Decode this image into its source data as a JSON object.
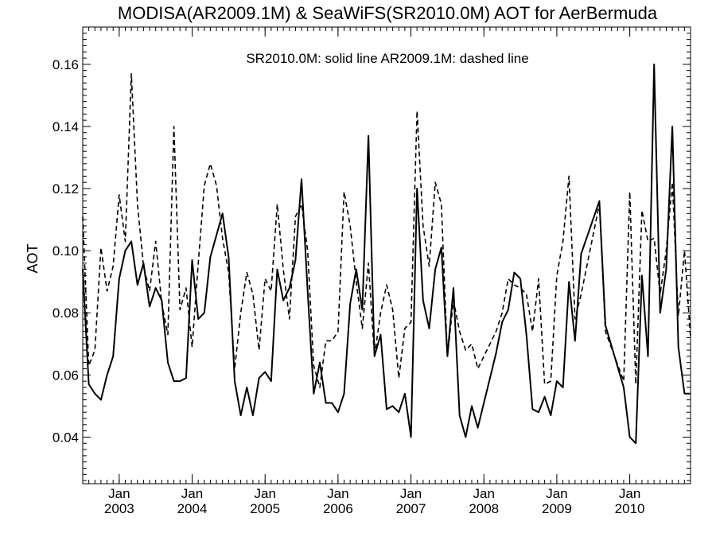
{
  "chart_data": {
    "type": "line",
    "title": "MODISA(AR2009.1M) & SeaWiFS(SR2010.0M)  AOT for AerBermuda",
    "annotation": "SR2010.0M: solid line   AR2009.1M: dashed line",
    "ylabel": "AOT",
    "xlabel": "",
    "ylim": [
      0.025,
      0.172
    ],
    "xlim": [
      "2002-07",
      "2010-11"
    ],
    "yticks": [
      {
        "value": 0.04,
        "label": "0.04"
      },
      {
        "value": 0.06,
        "label": "0.06"
      },
      {
        "value": 0.08,
        "label": "0.08"
      },
      {
        "value": 0.1,
        "label": "0.10"
      },
      {
        "value": 0.12,
        "label": "0.12"
      },
      {
        "value": 0.14,
        "label": "0.14"
      },
      {
        "value": 0.16,
        "label": "0.16"
      }
    ],
    "xticks": [
      {
        "date": "2003-01",
        "month": "Jan",
        "year": "2003"
      },
      {
        "date": "2004-01",
        "month": "Jan",
        "year": "2004"
      },
      {
        "date": "2005-01",
        "month": "Jan",
        "year": "2005"
      },
      {
        "date": "2006-01",
        "month": "Jan",
        "year": "2006"
      },
      {
        "date": "2007-01",
        "month": "Jan",
        "year": "2007"
      },
      {
        "date": "2008-01",
        "month": "Jan",
        "year": "2008"
      },
      {
        "date": "2009-01",
        "month": "Jan",
        "year": "2009"
      },
      {
        "date": "2010-01",
        "month": "Jan",
        "year": "2010"
      }
    ],
    "grid": false,
    "series": [
      {
        "style": "solid",
        "points": [
          [
            "2002-07",
            0.094
          ],
          [
            "2002-08",
            0.057
          ],
          [
            "2002-09",
            0.054
          ],
          [
            "2002-10",
            0.052
          ],
          [
            "2002-11",
            0.06
          ],
          [
            "2002-12",
            0.066
          ],
          [
            "2003-01",
            0.091
          ],
          [
            "2003-02",
            0.1
          ],
          [
            "2003-03",
            0.103
          ],
          [
            "2003-04",
            0.089
          ],
          [
            "2003-05",
            0.096
          ],
          [
            "2003-06",
            0.082
          ],
          [
            "2003-07",
            0.088
          ],
          [
            "2003-08",
            0.084
          ],
          [
            "2003-09",
            0.064
          ],
          [
            "2003-10",
            0.058
          ],
          [
            "2003-11",
            0.058
          ],
          [
            "2003-12",
            0.059
          ],
          [
            "2004-01",
            0.097
          ],
          [
            "2004-02",
            0.078
          ],
          [
            "2004-03",
            0.08
          ],
          [
            "2004-04",
            0.098
          ],
          [
            "2004-05",
            0.105
          ],
          [
            "2004-06",
            0.112
          ],
          [
            "2004-07",
            0.098
          ],
          [
            "2004-08",
            0.058
          ],
          [
            "2004-09",
            0.047
          ],
          [
            "2004-10",
            0.056
          ],
          [
            "2004-11",
            0.047
          ],
          [
            "2004-12",
            0.059
          ],
          [
            "2005-01",
            0.061
          ],
          [
            "2005-02",
            0.058
          ],
          [
            "2005-03",
            0.094
          ],
          [
            "2005-04",
            0.084
          ],
          [
            "2005-05",
            0.088
          ],
          [
            "2005-06",
            0.097
          ],
          [
            "2005-07",
            0.123
          ],
          [
            "2005-08",
            0.087
          ],
          [
            "2005-09",
            0.054
          ],
          [
            "2005-10",
            0.064
          ],
          [
            "2005-11",
            0.051
          ],
          [
            "2005-12",
            0.051
          ],
          [
            "2006-01",
            0.048
          ],
          [
            "2006-02",
            0.054
          ],
          [
            "2006-03",
            0.083
          ],
          [
            "2006-04",
            0.094
          ],
          [
            "2006-05",
            0.081
          ],
          [
            "2006-06",
            0.137
          ],
          [
            "2006-07",
            0.066
          ],
          [
            "2006-08",
            0.073
          ],
          [
            "2006-09",
            0.049
          ],
          [
            "2006-10",
            0.05
          ],
          [
            "2006-11",
            0.048
          ],
          [
            "2006-12",
            0.054
          ],
          [
            "2007-01",
            0.04
          ],
          [
            "2007-02",
            0.12
          ],
          [
            "2007-03",
            0.084
          ],
          [
            "2007-04",
            0.075
          ],
          [
            "2007-05",
            0.094
          ],
          [
            "2007-06",
            0.101
          ],
          [
            "2007-07",
            0.066
          ],
          [
            "2007-08",
            0.088
          ],
          [
            "2007-09",
            0.047
          ],
          [
            "2007-10",
            0.04
          ],
          [
            "2007-11",
            0.05
          ],
          [
            "2007-12",
            0.043
          ],
          [
            "2008-01",
            0.051
          ],
          [
            "2008-02",
            0.059
          ],
          [
            "2008-03",
            0.067
          ],
          [
            "2008-04",
            0.077
          ],
          [
            "2008-05",
            0.081
          ],
          [
            "2008-06",
            0.093
          ],
          [
            "2008-07",
            0.091
          ],
          [
            "2008-08",
            0.073
          ],
          [
            "2008-09",
            0.049
          ],
          [
            "2008-10",
            0.048
          ],
          [
            "2008-11",
            0.053
          ],
          [
            "2008-12",
            0.047
          ],
          [
            "2009-01",
            0.058
          ],
          [
            "2009-02",
            0.056
          ],
          [
            "2009-03",
            0.09
          ],
          [
            "2009-04",
            0.071
          ],
          [
            "2009-05",
            0.099
          ],
          [
            "2009-08",
            0.116
          ],
          [
            "2009-09",
            0.076
          ],
          [
            "2009-12",
            0.056
          ],
          [
            "2010-01",
            0.04
          ],
          [
            "2010-02",
            0.038
          ],
          [
            "2010-03",
            0.092
          ],
          [
            "2010-04",
            0.066
          ],
          [
            "2010-05",
            0.16
          ],
          [
            "2010-06",
            0.08
          ],
          [
            "2010-07",
            0.094
          ],
          [
            "2010-08",
            0.14
          ],
          [
            "2010-09",
            0.069
          ],
          [
            "2010-10",
            0.054
          ],
          [
            "2010-11",
            0.054
          ]
        ]
      },
      {
        "style": "dashed",
        "points": [
          [
            "2002-07",
            0.111
          ],
          [
            "2002-08",
            0.063
          ],
          [
            "2002-09",
            0.068
          ],
          [
            "2002-10",
            0.101
          ],
          [
            "2002-11",
            0.087
          ],
          [
            "2002-12",
            0.095
          ],
          [
            "2003-01",
            0.118
          ],
          [
            "2003-02",
            0.103
          ],
          [
            "2003-03",
            0.157
          ],
          [
            "2003-04",
            0.115
          ],
          [
            "2003-05",
            0.095
          ],
          [
            "2003-06",
            0.087
          ],
          [
            "2003-07",
            0.103
          ],
          [
            "2003-08",
            0.083
          ],
          [
            "2003-09",
            0.073
          ],
          [
            "2003-10",
            0.14
          ],
          [
            "2003-11",
            0.081
          ],
          [
            "2003-12",
            0.088
          ],
          [
            "2004-01",
            0.069
          ],
          [
            "2004-02",
            0.096
          ],
          [
            "2004-03",
            0.121
          ],
          [
            "2004-04",
            0.128
          ],
          [
            "2004-05",
            0.121
          ],
          [
            "2004-06",
            0.104
          ],
          [
            "2004-07",
            0.093
          ],
          [
            "2004-08",
            0.062
          ],
          [
            "2004-09",
            0.08
          ],
          [
            "2004-10",
            0.093
          ],
          [
            "2004-11",
            0.086
          ],
          [
            "2004-12",
            0.068
          ],
          [
            "2005-01",
            0.091
          ],
          [
            "2005-02",
            0.087
          ],
          [
            "2005-03",
            0.115
          ],
          [
            "2005-04",
            0.094
          ],
          [
            "2005-05",
            0.078
          ],
          [
            "2005-06",
            0.111
          ],
          [
            "2005-07",
            0.115
          ],
          [
            "2005-08",
            0.1
          ],
          [
            "2005-09",
            0.063
          ],
          [
            "2005-10",
            0.056
          ],
          [
            "2005-11",
            0.071
          ],
          [
            "2005-12",
            0.071
          ],
          [
            "2006-01",
            0.074
          ],
          [
            "2006-02",
            0.119
          ],
          [
            "2006-03",
            0.108
          ],
          [
            "2006-04",
            0.09
          ],
          [
            "2006-05",
            0.075
          ],
          [
            "2006-06",
            0.096
          ],
          [
            "2006-07",
            0.066
          ],
          [
            "2006-08",
            0.08
          ],
          [
            "2006-09",
            0.089
          ],
          [
            "2006-10",
            0.081
          ],
          [
            "2006-11",
            0.059
          ],
          [
            "2006-12",
            0.075
          ],
          [
            "2007-01",
            0.077
          ],
          [
            "2007-02",
            0.145
          ],
          [
            "2007-03",
            0.108
          ],
          [
            "2007-04",
            0.095
          ],
          [
            "2007-05",
            0.122
          ],
          [
            "2007-06",
            0.115
          ],
          [
            "2007-07",
            0.066
          ],
          [
            "2007-08",
            0.084
          ],
          [
            "2007-09",
            0.074
          ],
          [
            "2007-10",
            0.068
          ],
          [
            "2007-11",
            0.07
          ],
          [
            "2007-12",
            0.062
          ],
          [
            "2008-01",
            0.066
          ],
          [
            "2008-02",
            0.07
          ],
          [
            "2008-03",
            0.074
          ],
          [
            "2008-04",
            0.08
          ],
          [
            "2008-05",
            0.091
          ],
          [
            "2008-06",
            0.089
          ],
          [
            "2008-07",
            0.088
          ],
          [
            "2008-08",
            0.086
          ],
          [
            "2008-09",
            0.074
          ],
          [
            "2008-10",
            0.091
          ],
          [
            "2008-11",
            0.057
          ],
          [
            "2008-12",
            0.058
          ],
          [
            "2009-01",
            0.092
          ],
          [
            "2009-02",
            0.103
          ],
          [
            "2009-03",
            0.124
          ],
          [
            "2009-04",
            0.078
          ],
          [
            "2009-05",
            0.086
          ],
          [
            "2009-08",
            0.115
          ],
          [
            "2009-09",
            0.074
          ],
          [
            "2009-12",
            0.058
          ],
          [
            "2010-01",
            0.119
          ],
          [
            "2010-02",
            0.057
          ],
          [
            "2010-03",
            0.113
          ],
          [
            "2010-04",
            0.103
          ],
          [
            "2010-05",
            0.104
          ],
          [
            "2010-06",
            0.086
          ],
          [
            "2010-07",
            0.1
          ],
          [
            "2010-08",
            0.122
          ],
          [
            "2010-09",
            0.079
          ],
          [
            "2010-10",
            0.1
          ],
          [
            "2010-11",
            0.072
          ]
        ]
      }
    ]
  }
}
